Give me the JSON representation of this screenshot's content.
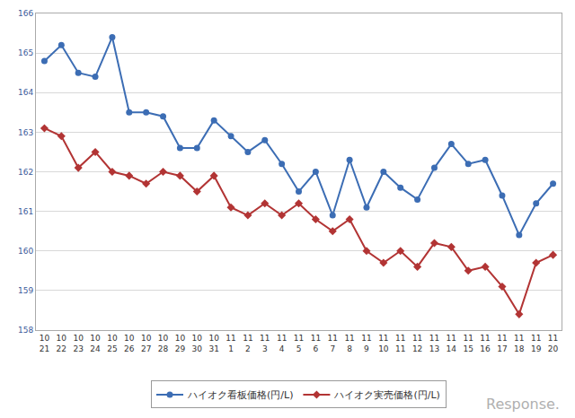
{
  "chart_data": {
    "type": "line",
    "categories": [
      "10\n21",
      "10\n22",
      "10\n23",
      "10\n24",
      "10\n25",
      "10\n26",
      "10\n27",
      "10\n28",
      "10\n29",
      "10\n30",
      "10\n31",
      "11\n1",
      "11\n2",
      "11\n3",
      "11\n4",
      "11\n5",
      "11\n6",
      "11\n7",
      "11\n8",
      "11\n9",
      "11\n10",
      "11\n11",
      "11\n12",
      "11\n13",
      "11\n14",
      "11\n15",
      "11\n16",
      "11\n17",
      "11\n18",
      "11\n19",
      "11\n20"
    ],
    "series": [
      {
        "name": "ハイオク看板価格(円/L)",
        "color": "#3c6db4",
        "marker": "circle",
        "values": [
          164.8,
          165.2,
          164.5,
          164.4,
          165.4,
          163.5,
          163.5,
          163.4,
          162.6,
          162.6,
          163.3,
          162.9,
          162.5,
          162.8,
          162.2,
          161.5,
          162.0,
          160.9,
          162.3,
          161.1,
          162.0,
          161.6,
          161.3,
          162.1,
          162.7,
          162.2,
          162.3,
          161.4,
          160.4,
          161.2,
          161.7
        ]
      },
      {
        "name": "ハイオク実売価格(円/L)",
        "color": "#b23434",
        "marker": "diamond",
        "values": [
          163.1,
          162.9,
          162.1,
          162.5,
          162.0,
          161.9,
          161.7,
          162.0,
          161.9,
          161.5,
          161.9,
          161.1,
          160.9,
          161.2,
          160.9,
          161.2,
          160.8,
          160.5,
          160.8,
          160.0,
          159.7,
          160.0,
          159.6,
          160.2,
          160.1,
          159.5,
          159.6,
          159.1,
          158.4,
          159.7,
          159.9
        ]
      }
    ],
    "ylim": [
      158,
      166
    ],
    "yticks": [
      158,
      159,
      160,
      161,
      162,
      163,
      164,
      165,
      166
    ],
    "grid": true,
    "legend": "bottom",
    "annotations": [
      "Response."
    ]
  }
}
